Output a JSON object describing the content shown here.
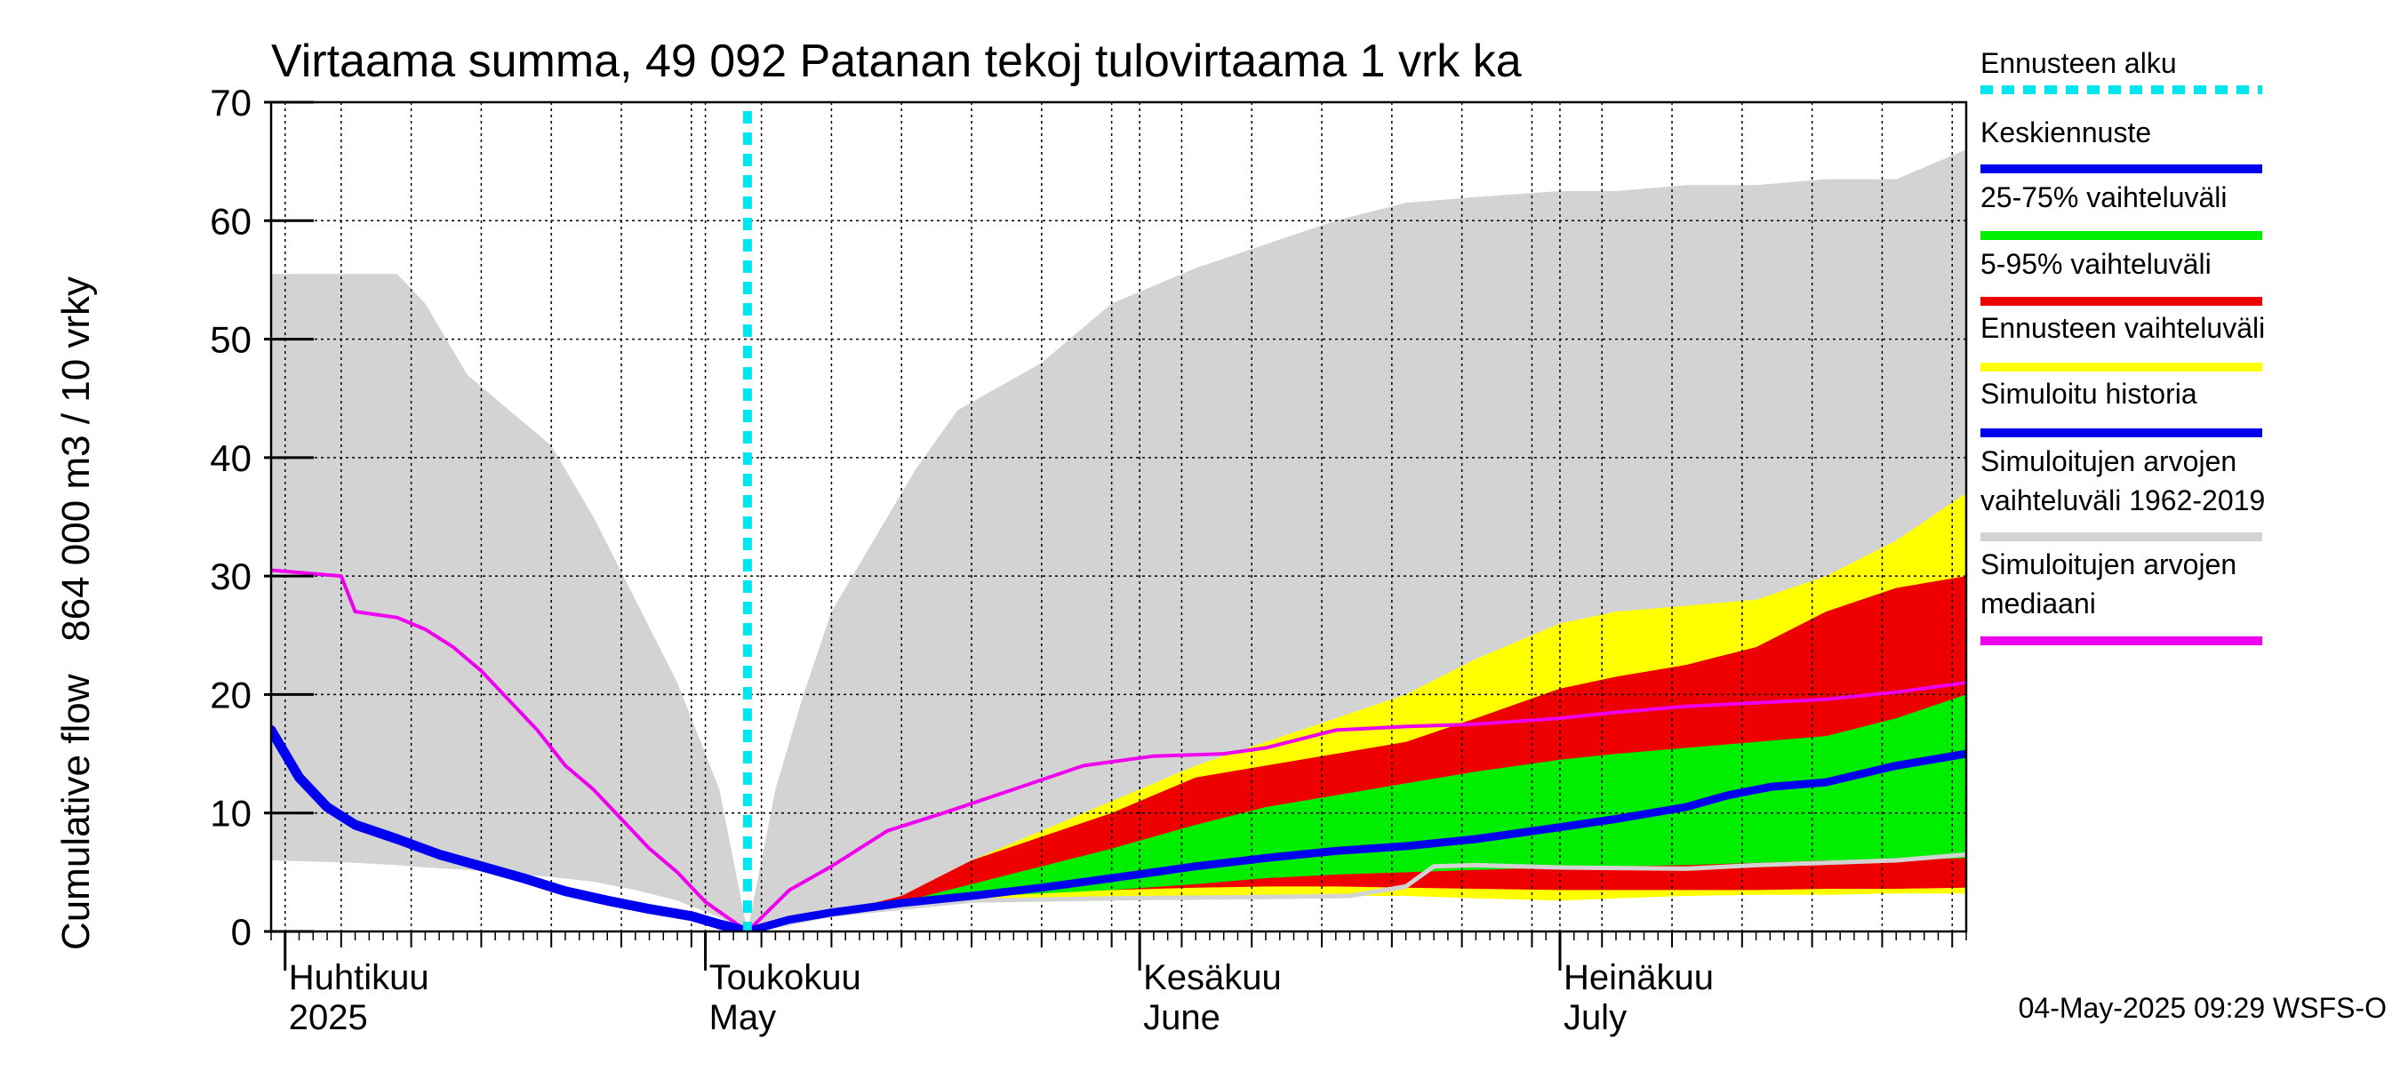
{
  "chart_data": {
    "type": "area",
    "title": "Virtaama summa, 49 092 Patanan tekoj tulovirtaama 1 vrk ka",
    "ylabel": "Cumulative flow   864 000 m3 / 10 vrky",
    "ylim": [
      0,
      70
    ],
    "yticks": [
      0,
      10,
      20,
      30,
      40,
      50,
      60,
      70
    ],
    "xlim": [
      "2025-03-31",
      "2025-07-30"
    ],
    "forecast_start": "2025-05-04",
    "grid": true,
    "legend_position": "right",
    "month_labels": [
      {
        "date": "2025-04-01",
        "line1": "Huhtikuu",
        "line2": "2025"
      },
      {
        "date": "2025-05-01",
        "line1": "Toukokuu",
        "line2": "May"
      },
      {
        "date": "2025-06-01",
        "line1": "Kesäkuu",
        "line2": "June"
      },
      {
        "date": "2025-07-01",
        "line1": "Heinäkuu",
        "line2": "July"
      }
    ],
    "footer": "04-May-2025 09:29 WSFS-O",
    "colors": {
      "forecast_start": "#00e5ee",
      "mean_forecast": "#0000ee",
      "band_25_75": "#00ee00",
      "band_5_95": "#ee0000",
      "band_forecast": "#ffff00",
      "simulated_history": "#0000ee",
      "band_1962_2019": "#d3d3d3",
      "median_1962_2019": "#ee00ee",
      "lower_grey_line": "#d3d3d3"
    },
    "series": [
      {
        "name": "Simuloitujen arvojen vaihteluväli 1962-2019",
        "type": "band",
        "color_key": "band_1962_2019",
        "x": [
          "2025-03-31",
          "2025-04-06",
          "2025-04-09",
          "2025-04-11",
          "2025-04-14",
          "2025-04-20",
          "2025-04-23",
          "2025-04-26",
          "2025-04-29",
          "2025-05-02",
          "2025-05-04",
          "2025-05-06",
          "2025-05-08",
          "2025-05-10",
          "2025-05-13",
          "2025-05-16",
          "2025-05-19",
          "2025-05-22",
          "2025-05-25",
          "2025-05-30",
          "2025-06-05",
          "2025-06-10",
          "2025-06-15",
          "2025-06-20",
          "2025-06-25",
          "2025-07-01",
          "2025-07-05",
          "2025-07-10",
          "2025-07-15",
          "2025-07-20",
          "2025-07-25",
          "2025-07-30"
        ],
        "upper": [
          55.5,
          55.5,
          55.5,
          53,
          47,
          41,
          35,
          28,
          21,
          12,
          0,
          12,
          20,
          27,
          33,
          39,
          44,
          46,
          48,
          53,
          56,
          58,
          60,
          61.5,
          62,
          62.5,
          62.5,
          63,
          63,
          63.5,
          63.5,
          66
        ],
        "lower": [
          6,
          5.8,
          5.6,
          5.4,
          5.2,
          4.6,
          4.2,
          3.5,
          2.6,
          1.2,
          0,
          0.5,
          1,
          1.4,
          2,
          2.5,
          3,
          3.5,
          4,
          5,
          6,
          6.8,
          7.5,
          8.5,
          9,
          9.5,
          10,
          10.5,
          11,
          12,
          13,
          14
        ]
      },
      {
        "name": "Ennusteen vaihteluväli",
        "type": "band",
        "color_key": "band_forecast",
        "x": [
          "2025-05-04",
          "2025-05-10",
          "2025-05-15",
          "2025-05-20",
          "2025-05-25",
          "2025-05-30",
          "2025-06-05",
          "2025-06-10",
          "2025-06-15",
          "2025-06-20",
          "2025-06-25",
          "2025-07-01",
          "2025-07-05",
          "2025-07-10",
          "2025-07-15",
          "2025-07-20",
          "2025-07-25",
          "2025-07-30"
        ],
        "upper": [
          0,
          1.5,
          3,
          6,
          8.5,
          11,
          14,
          16,
          18,
          20,
          23,
          26,
          27,
          27.5,
          28,
          30,
          33,
          37
        ],
        "lower": [
          0,
          1.2,
          2,
          2.5,
          2.7,
          2.8,
          2.9,
          3,
          3,
          3,
          2.8,
          2.6,
          2.8,
          3,
          3.1,
          3.1,
          3.2,
          3.2
        ]
      },
      {
        "name": "5-95% vaihteluväli",
        "type": "band",
        "color_key": "band_5_95",
        "x": [
          "2025-05-04",
          "2025-05-10",
          "2025-05-15",
          "2025-05-20",
          "2025-05-25",
          "2025-05-30",
          "2025-06-05",
          "2025-06-10",
          "2025-06-15",
          "2025-06-20",
          "2025-06-25",
          "2025-07-01",
          "2025-07-05",
          "2025-07-10",
          "2025-07-15",
          "2025-07-20",
          "2025-07-25",
          "2025-07-30"
        ],
        "upper": [
          0,
          1.5,
          3,
          6,
          8,
          10,
          13,
          14,
          15,
          16,
          18,
          20.5,
          21.5,
          22.5,
          24,
          27,
          29,
          30
        ],
        "lower": [
          0,
          1.3,
          2.4,
          3,
          3.3,
          3.5,
          3.7,
          3.8,
          3.8,
          3.7,
          3.6,
          3.5,
          3.5,
          3.5,
          3.5,
          3.6,
          3.6,
          3.7
        ]
      },
      {
        "name": "25-75% vaihteluväli",
        "type": "band",
        "color_key": "band_25_75",
        "x": [
          "2025-05-04",
          "2025-05-10",
          "2025-05-15",
          "2025-05-20",
          "2025-05-25",
          "2025-05-30",
          "2025-06-05",
          "2025-06-10",
          "2025-06-15",
          "2025-06-20",
          "2025-06-25",
          "2025-07-01",
          "2025-07-05",
          "2025-07-10",
          "2025-07-15",
          "2025-07-20",
          "2025-07-25",
          "2025-07-30"
        ],
        "upper": [
          0,
          1.4,
          2.5,
          4,
          5.5,
          7,
          9,
          10.5,
          11.5,
          12.5,
          13.5,
          14.5,
          15,
          15.5,
          16,
          16.5,
          18,
          20
        ],
        "lower": [
          0,
          1.3,
          2.2,
          2.9,
          3.2,
          3.5,
          4,
          4.5,
          4.8,
          5,
          5.2,
          5.4,
          5.5,
          5.6,
          5.8,
          6,
          6,
          6.2
        ]
      },
      {
        "name": "Keskiennuste",
        "type": "line",
        "color_key": "mean_forecast",
        "x": [
          "2025-05-04",
          "2025-05-07",
          "2025-05-10",
          "2025-05-15",
          "2025-05-20",
          "2025-05-25",
          "2025-05-30",
          "2025-06-05",
          "2025-06-10",
          "2025-06-15",
          "2025-06-20",
          "2025-06-25",
          "2025-07-01",
          "2025-07-05",
          "2025-07-10",
          "2025-07-13",
          "2025-07-16",
          "2025-07-20",
          "2025-07-25",
          "2025-07-30"
        ],
        "y": [
          0,
          1,
          1.6,
          2.4,
          3,
          3.7,
          4.5,
          5.5,
          6.2,
          6.8,
          7.2,
          7.8,
          8.8,
          9.5,
          10.5,
          11.5,
          12.2,
          12.6,
          14,
          15
        ]
      },
      {
        "name": "Simuloitu historia",
        "type": "line",
        "color_key": "simulated_history",
        "x": [
          "2025-03-31",
          "2025-04-02",
          "2025-04-04",
          "2025-04-06",
          "2025-04-09",
          "2025-04-12",
          "2025-04-15",
          "2025-04-18",
          "2025-04-21",
          "2025-04-24",
          "2025-04-27",
          "2025-04-30",
          "2025-05-02",
          "2025-05-04"
        ],
        "y": [
          17,
          13,
          10.5,
          9,
          7.8,
          6.5,
          5.5,
          4.5,
          3.4,
          2.6,
          1.9,
          1.3,
          0.6,
          0
        ]
      },
      {
        "name": "Simuloitujen arvojen mediaani",
        "type": "line",
        "color_key": "median_1962_2019",
        "x": [
          "2025-03-31",
          "2025-04-05",
          "2025-04-06",
          "2025-04-09",
          "2025-04-11",
          "2025-04-13",
          "2025-04-15",
          "2025-04-17",
          "2025-04-19",
          "2025-04-21",
          "2025-04-23",
          "2025-04-25",
          "2025-04-27",
          "2025-04-29",
          "2025-05-01",
          "2025-05-04",
          "2025-05-07",
          "2025-05-10",
          "2025-05-14",
          "2025-05-18",
          "2025-05-23",
          "2025-05-28",
          "2025-06-02",
          "2025-06-07",
          "2025-06-10",
          "2025-06-15",
          "2025-06-20",
          "2025-06-25",
          "2025-07-01",
          "2025-07-05",
          "2025-07-10",
          "2025-07-15",
          "2025-07-20",
          "2025-07-25",
          "2025-07-30"
        ],
        "y": [
          30.5,
          30,
          27,
          26.5,
          25.5,
          24,
          22,
          19.5,
          17,
          14,
          12,
          9.5,
          7,
          5,
          2.5,
          0,
          3.5,
          5.5,
          8.5,
          10,
          12,
          14,
          14.8,
          15,
          15.5,
          17,
          17.3,
          17.5,
          18,
          18.5,
          19,
          19.3,
          19.6,
          20.2,
          21
        ]
      },
      {
        "name": "",
        "type": "line",
        "color_key": "lower_grey_line",
        "x": [
          "2025-05-04",
          "2025-05-10",
          "2025-05-20",
          "2025-05-30",
          "2025-06-10",
          "2025-06-16",
          "2025-06-20",
          "2025-06-22",
          "2025-06-25",
          "2025-07-01",
          "2025-07-10",
          "2025-07-15",
          "2025-07-20",
          "2025-07-25",
          "2025-07-30"
        ],
        "y": [
          0,
          1.4,
          2.6,
          2.8,
          2.9,
          3,
          3.8,
          5.5,
          5.6,
          5.4,
          5.3,
          5.6,
          5.8,
          6,
          6.5
        ]
      }
    ]
  },
  "legend": [
    {
      "label": "Ennusteen alku",
      "color_key": "forecast_start",
      "style": "dashed"
    },
    {
      "label": "Keskiennuste",
      "color_key": "mean_forecast",
      "style": "solid"
    },
    {
      "label": "25-75% vaihteluväli",
      "color_key": "band_25_75",
      "style": "solid"
    },
    {
      "label": "5-95% vaihteluväli",
      "color_key": "band_5_95",
      "style": "solid"
    },
    {
      "label": "Ennusteen vaihteluväli",
      "color_key": "band_forecast",
      "style": "solid"
    },
    {
      "label": "Simuloitu historia",
      "color_key": "simulated_history",
      "style": "solid"
    },
    {
      "label": "Simuloitujen arvojen vaihteluväli 1962-2019",
      "line1": "Simuloitujen arvojen",
      "line2": "vaihteluväli 1962-2019",
      "color_key": "band_1962_2019",
      "style": "solid"
    },
    {
      "label": "Simuloitujen arvojen mediaani",
      "line1": "Simuloitujen arvojen",
      "line2": "mediaani",
      "color_key": "median_1962_2019",
      "style": "solid"
    }
  ]
}
